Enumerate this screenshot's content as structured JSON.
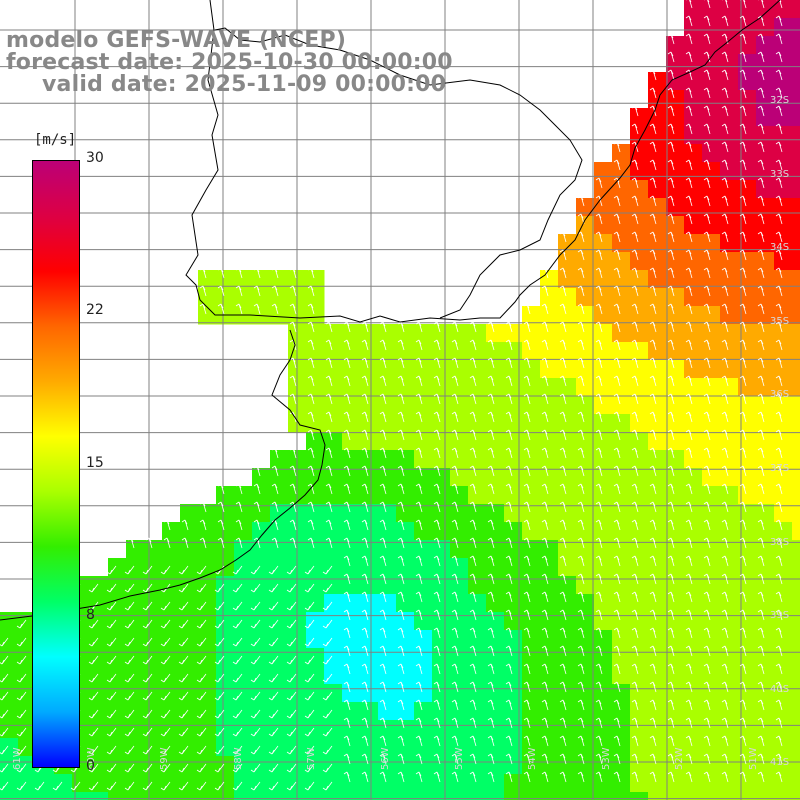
{
  "titles": {
    "model": "modelo GEFS-WAVE (NCEP)",
    "forecast": "forecast date: 2025-10-30 00:00:00",
    "valid": "valid date: 2025-11-09 00:00:00"
  },
  "colorbar": {
    "unit": "[m/s]",
    "ticks": [
      "0",
      "8",
      "15",
      "22",
      "30"
    ],
    "min": 0,
    "max": 30,
    "colors": [
      "#0000ff",
      "#00aaff",
      "#00ffff",
      "#00ff66",
      "#33ee00",
      "#aaff00",
      "#ffff00",
      "#ffaa00",
      "#ff6600",
      "#ff0000",
      "#dd0044",
      "#bb0077"
    ]
  },
  "map": {
    "lat_labels": [
      "32S",
      "33S",
      "34S",
      "35S",
      "36S",
      "37S",
      "38S",
      "39S",
      "40S",
      "41S"
    ],
    "lon_labels": [
      "61W",
      "60W",
      "59W",
      "58W",
      "57W",
      "56W",
      "55W",
      "54W",
      "53W",
      "52W",
      "51W"
    ],
    "land_color": "#ffffff",
    "grid_color": "#808080",
    "arrow_color": "#ffffff",
    "coast_color": "#000000"
  }
}
